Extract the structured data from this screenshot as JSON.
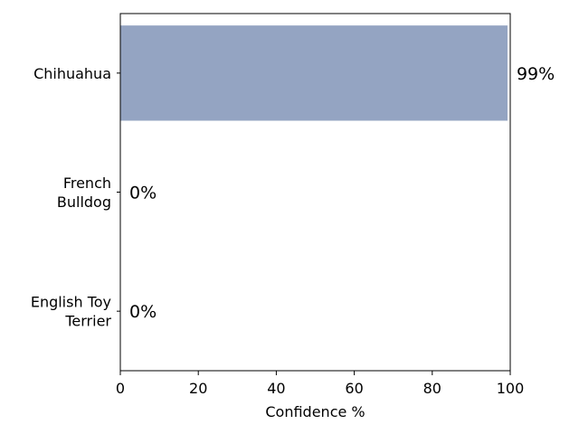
{
  "chart_data": {
    "type": "bar",
    "orientation": "horizontal",
    "categories": [
      [
        "Chihuahua"
      ],
      [
        "French",
        "Bulldog"
      ],
      [
        "English Toy",
        "Terrier"
      ]
    ],
    "values": [
      99.3,
      0.0,
      0.0
    ],
    "value_labels": [
      "99%",
      "0%",
      "0%"
    ],
    "xlabel": "Confidence %",
    "xlim": [
      0,
      100
    ],
    "xticks": [
      0,
      20,
      40,
      60,
      80,
      100
    ],
    "bar_color": "#94a4c2",
    "grid": false
  }
}
